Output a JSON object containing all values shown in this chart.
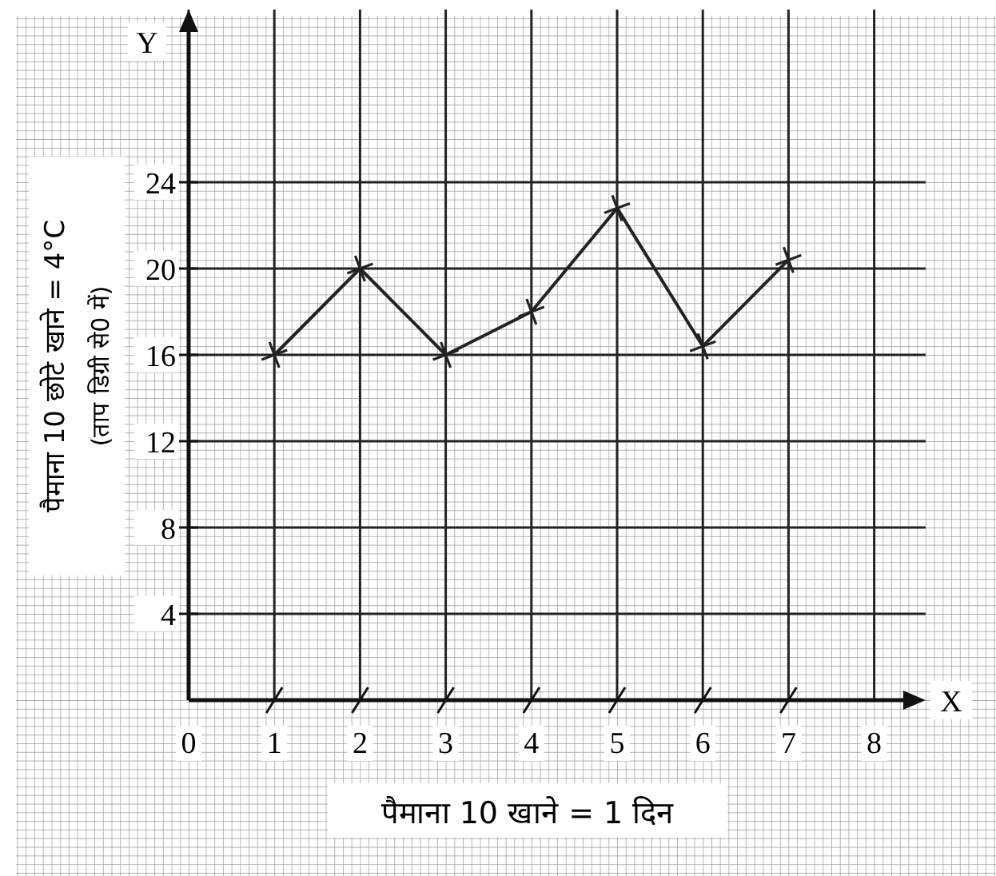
{
  "chart_data": {
    "type": "line",
    "xlabel": "पैमाना 10 खाने = 1 दिन",
    "ylabel": "पैमाना 10 छोटे खाने = 4°C",
    "annotations": [
      "(ताप डिग्री से0 में)",
      "X",
      "Y"
    ],
    "x": [
      1,
      2,
      3,
      4,
      5,
      6,
      7
    ],
    "series": [
      {
        "color": "#222222",
        "values": [
          16,
          20,
          16,
          18,
          22.8,
          16.4,
          20.4
        ]
      }
    ],
    "xlim": [
      0,
      8.6
    ],
    "ylim": [
      0,
      32
    ],
    "xticks": [
      0,
      1,
      2,
      3,
      4,
      5,
      6,
      7,
      8
    ],
    "yticks": [
      4,
      8,
      12,
      16,
      20,
      24
    ],
    "grid": true,
    "marker": "cross",
    "line_style": "solid"
  }
}
